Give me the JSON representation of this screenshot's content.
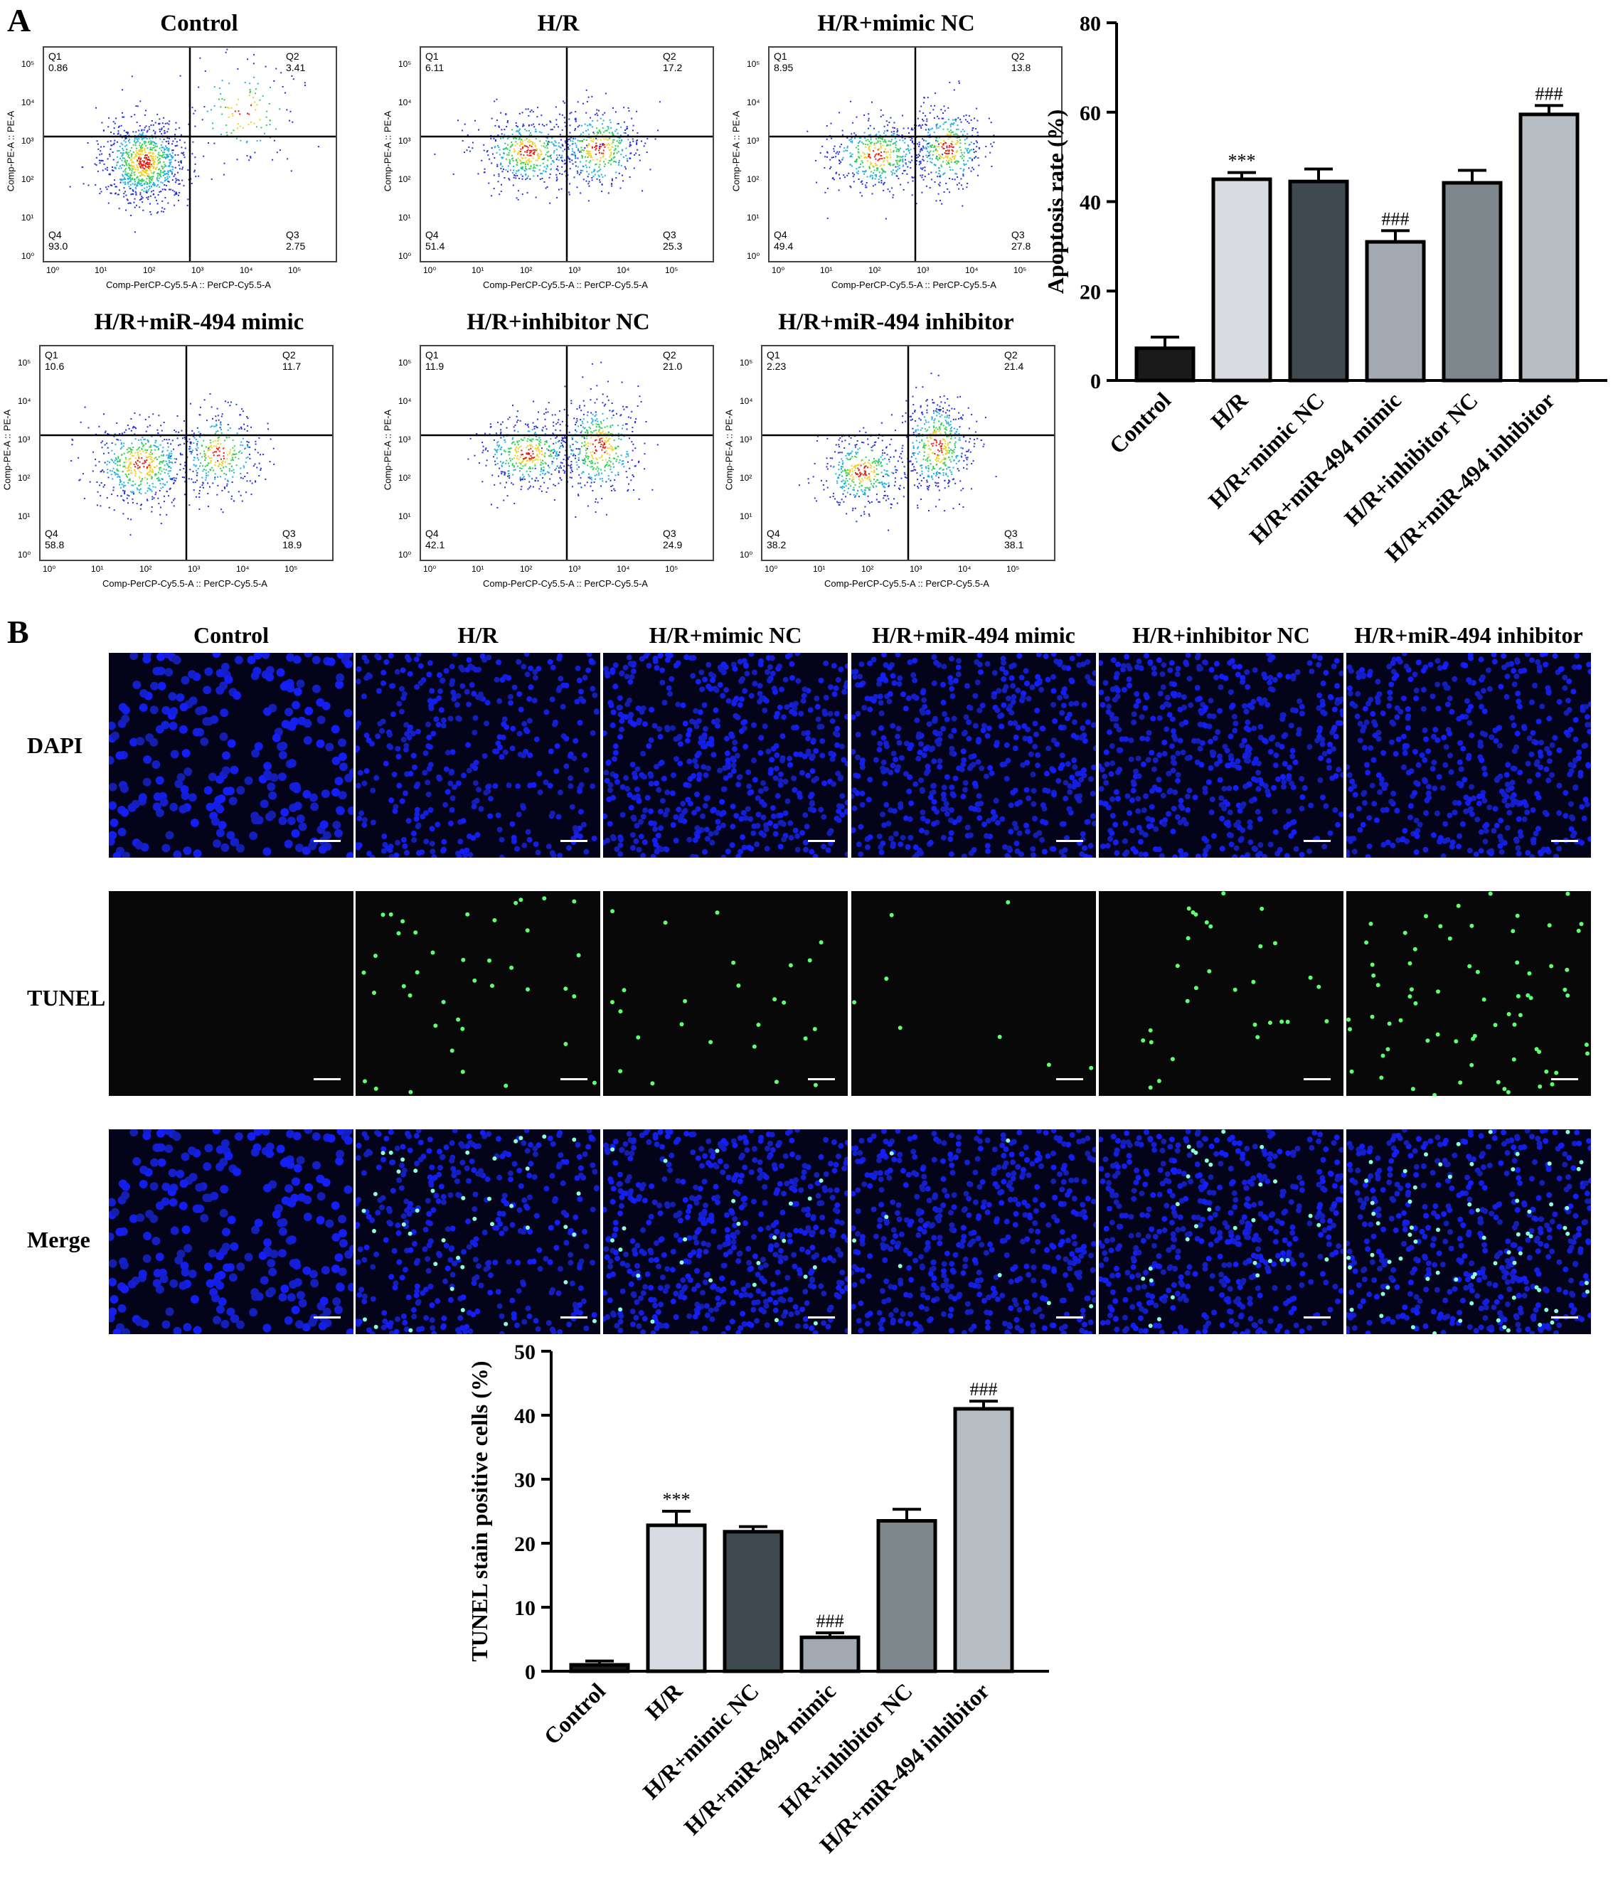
{
  "panel_a": {
    "letter": "A",
    "flow_plots": [
      {
        "title": "Control",
        "q1_label": "Q1",
        "q1": "0.86",
        "q2_label": "Q2",
        "q2": "3.41",
        "q4_label": "Q4",
        "q4": "93.0",
        "q3_label": "Q3",
        "q3": "2.75",
        "xlabel": "Comp-PerCP-Cy5.5-A :: PerCP-Cy5.5-A",
        "ylabel": "Comp-PE-A :: PE-A"
      },
      {
        "title": "H/R",
        "q1_label": "Q1",
        "q1": "6.11",
        "q2_label": "Q2",
        "q2": "17.2",
        "q4_label": "Q4",
        "q4": "51.4",
        "q3_label": "Q3",
        "q3": "25.3",
        "xlabel": "Comp-PerCP-Cy5.5-A :: PerCP-Cy5.5-A",
        "ylabel": "Comp-PE-A :: PE-A"
      },
      {
        "title": "H/R+mimic NC",
        "q1_label": "Q1",
        "q1": "8.95",
        "q2_label": "Q2",
        "q2": "13.8",
        "q4_label": "Q4",
        "q4": "49.4",
        "q3_label": "Q3",
        "q3": "27.8",
        "xlabel": "Comp-PerCP-Cy5.5-A :: PerCP-Cy5.5-A",
        "ylabel": "Comp-PE-A :: PE-A"
      },
      {
        "title": "H/R+miR-494 mimic",
        "q1_label": "Q1",
        "q1": "10.6",
        "q2_label": "Q2",
        "q2": "11.7",
        "q4_label": "Q4",
        "q4": "58.8",
        "q3_label": "Q3",
        "q3": "18.9",
        "xlabel": "Comp-PerCP-Cy5.5-A :: PerCP-Cy5.5-A",
        "ylabel": "Comp-PE-A :: PE-A"
      },
      {
        "title": "H/R+inhibitor NC",
        "q1_label": "Q1",
        "q1": "11.9",
        "q2_label": "Q2",
        "q2": "21.0",
        "q4_label": "Q4",
        "q4": "42.1",
        "q3_label": "Q3",
        "q3": "24.9",
        "xlabel": "Comp-PerCP-Cy5.5-A :: PerCP-Cy5.5-A",
        "ylabel": "Comp-PE-A :: PE-A"
      },
      {
        "title": "H/R+miR-494 inhibitor",
        "q1_label": "Q1",
        "q1": "2.23",
        "q2_label": "Q2",
        "q2": "21.4",
        "q4_label": "Q4",
        "q4": "38.2",
        "q3_label": "Q3",
        "q3": "38.1",
        "xlabel": "Comp-PerCP-Cy5.5-A :: PerCP-Cy5.5-A",
        "ylabel": "Comp-PE-A :: PE-A"
      }
    ],
    "axis_ticks": [
      "10⁰",
      "10¹",
      "10²",
      "10³",
      "10⁴",
      "10⁵"
    ]
  },
  "panel_b": {
    "letter": "B",
    "columns": [
      "Control",
      "H/R",
      "H/R+mimic NC",
      "H/R+miR-494 mimic",
      "H/R+inhibitor NC",
      "H/R+miR-494 inhibitor"
    ],
    "rows": [
      "DAPI",
      "TUNEL",
      "Merge"
    ]
  },
  "chart_data": [
    {
      "type": "bar",
      "ylabel": "Apoptosis rate (%)",
      "ylim": [
        0,
        80
      ],
      "yticks": [
        "0",
        "20",
        "40",
        "60",
        "80"
      ],
      "categories": [
        "Control",
        "H/R",
        "H/R+mimic NC",
        "H/R+miR-494 mimic",
        "H/R+inhibitor NC",
        "H/R+miR-494 inhibitor"
      ],
      "values": [
        7.2,
        45.0,
        44.5,
        31.0,
        44.2,
        59.5
      ],
      "errors": [
        2.5,
        1.5,
        2.8,
        2.5,
        2.8,
        2.0
      ],
      "annotations": [
        "",
        "***",
        "",
        "###",
        "",
        "###"
      ],
      "colors": [
        "#1a1a1a",
        "#d8dbe1",
        "#3e4a50",
        "#a2a9b0",
        "#7e878c",
        "#b7bec3"
      ]
    },
    {
      "type": "bar",
      "ylabel": "TUNEL stain positive cells (%)",
      "ylim": [
        0,
        50
      ],
      "yticks": [
        "0",
        "10",
        "20",
        "30",
        "40",
        "50"
      ],
      "categories": [
        "Control",
        "H/R",
        "H/R+mimic NC",
        "H/R+miR-494 mimic",
        "H/R+inhibitor NC",
        "H/R+miR-494 inhibitor"
      ],
      "values": [
        1.0,
        22.8,
        21.8,
        5.3,
        23.5,
        41.0
      ],
      "errors": [
        0.6,
        2.2,
        0.8,
        0.7,
        1.8,
        1.2
      ],
      "annotations": [
        "",
        "***",
        "",
        "###",
        "",
        "###"
      ],
      "colors": [
        "#1a1a1a",
        "#d8dbe1",
        "#3e4a50",
        "#a2a9b0",
        "#7e878c",
        "#b7bec3"
      ]
    }
  ]
}
